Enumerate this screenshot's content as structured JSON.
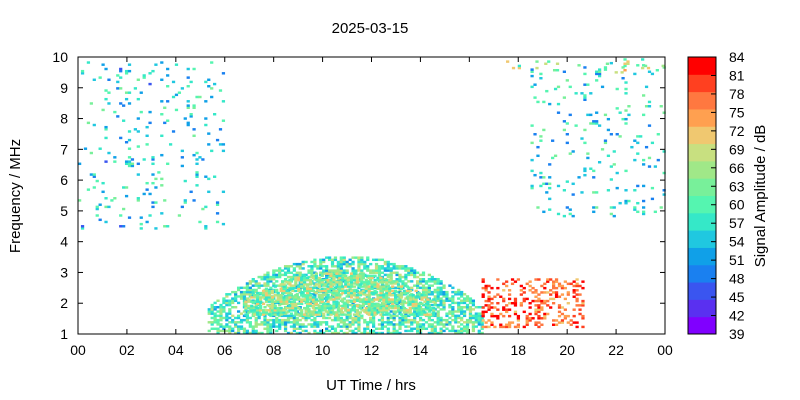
{
  "chart_data": {
    "type": "heatmap",
    "title": "2025-03-15",
    "xlabel": "UT Time / hrs",
    "ylabel": "Frequency / MHz",
    "colorbar_label": "Signal Amplitude / dB",
    "xlim": [
      0,
      24
    ],
    "ylim": [
      1,
      10
    ],
    "x_ticks": [
      "00",
      "02",
      "04",
      "06",
      "08",
      "10",
      "12",
      "14",
      "16",
      "18",
      "20",
      "22",
      "00"
    ],
    "y_ticks": [
      "1",
      "2",
      "3",
      "4",
      "5",
      "6",
      "7",
      "8",
      "9",
      "10"
    ],
    "colorbar_range": [
      39,
      84
    ],
    "colorbar_ticks": [
      "39",
      "42",
      "45",
      "48",
      "51",
      "54",
      "57",
      "60",
      "63",
      "66",
      "69",
      "72",
      "75",
      "78",
      "81",
      "84"
    ],
    "colorbar_colors": [
      "#8000ff",
      "#5a30f0",
      "#3a55f0",
      "#1a80f0",
      "#10a0e8",
      "#20c8e0",
      "#35e8c8",
      "#55f5b0",
      "#78f09a",
      "#a0e888",
      "#c8e080",
      "#f0c870",
      "#ffa050",
      "#ff7840",
      "#ff4020",
      "#ff0000"
    ],
    "grid": false,
    "regions": [
      {
        "name": "day-band",
        "x": [
          5.3,
          16.5
        ],
        "y": [
          1.0,
          3.5
        ],
        "level": 60
      },
      {
        "name": "day-band-peak",
        "x": [
          6.8,
          14.5
        ],
        "y": [
          1.6,
          3.0
        ],
        "level": 64
      },
      {
        "name": "evening-bursts",
        "x": [
          16.5,
          20.6
        ],
        "y": [
          1.2,
          2.8
        ],
        "level": 78
      },
      {
        "name": "night-noise",
        "x": [
          0.0,
          6.0
        ],
        "y": [
          4.4,
          9.8
        ],
        "level": 55
      },
      {
        "name": "night-noise-late",
        "x": [
          18.5,
          24.0
        ],
        "y": [
          4.8,
          9.8
        ],
        "level": 56
      },
      {
        "name": "hf-band",
        "x": [
          17.5,
          24.0
        ],
        "y": [
          9.4,
          9.9
        ],
        "level": 66
      }
    ]
  }
}
